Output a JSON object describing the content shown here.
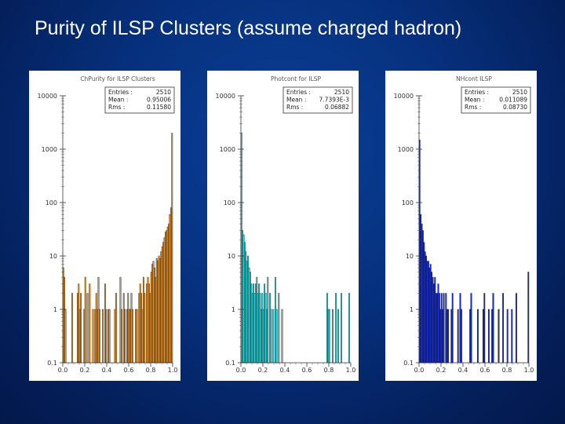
{
  "slide": {
    "title": "Purity of ILSP Clusters (assume charged hadron)"
  },
  "chart_data": [
    {
      "type": "bar",
      "title": "ChPurity for ILSP Clusters",
      "color": "#f7941d",
      "edge_color": "#222222",
      "y_scale": "log",
      "ylim": [
        0.1,
        10000
      ],
      "xlim": [
        0,
        1
      ],
      "y_ticks": [
        10000,
        1000,
        100,
        10,
        1,
        0.1
      ],
      "y_tick_labels": [
        "10000",
        "1000",
        "100",
        "10",
        "1",
        "0.1"
      ],
      "x_ticks": [
        0,
        0.2,
        0.4,
        0.6,
        0.8,
        1.0
      ],
      "x_tick_labels": [
        "0.0",
        "0.2",
        "0.4",
        "0.6",
        "0.8",
        "1.0"
      ],
      "stats": {
        "entries_label": "Entries :",
        "entries": "2510",
        "mean_label": "Mean :",
        "mean": "0.95006",
        "rms_label": "Rms :",
        "rms": "0.11580"
      },
      "bin_values": [
        6,
        4,
        1,
        0,
        0,
        0,
        0,
        0,
        2,
        0,
        0,
        0,
        0,
        2,
        3,
        1,
        2,
        0,
        0,
        1,
        4,
        0,
        2,
        0,
        3,
        0,
        0,
        1,
        0,
        1,
        2,
        1,
        4,
        1,
        0,
        0,
        1,
        0,
        3,
        1,
        0,
        1,
        1,
        0,
        0,
        0,
        0,
        1,
        2,
        0,
        0,
        0,
        4,
        1,
        0,
        2,
        1,
        0,
        1,
        2,
        1,
        1,
        2,
        1,
        0,
        0,
        1,
        1,
        0,
        2,
        3,
        2,
        1,
        4,
        2,
        0,
        3,
        4,
        3,
        2,
        5,
        7,
        8,
        6,
        4,
        9,
        8,
        10,
        9,
        12,
        15,
        18,
        22,
        28,
        30,
        35,
        40,
        60,
        80,
        2000
      ]
    },
    {
      "type": "bar",
      "title": "Photcont for ILSP",
      "color": "#1fe4ec",
      "edge_color": "#222222",
      "y_scale": "log",
      "ylim": [
        0.1,
        10000
      ],
      "xlim": [
        0,
        1
      ],
      "y_ticks": [
        10000,
        1000,
        100,
        10,
        1,
        0.1
      ],
      "y_tick_labels": [
        "10000",
        "1000",
        "100",
        "10",
        "1",
        "0.1"
      ],
      "x_ticks": [
        0,
        0.2,
        0.4,
        0.6,
        0.8,
        1.0
      ],
      "x_tick_labels": [
        "0.0",
        "0.2",
        "0.4",
        "0.6",
        "0.8",
        "1.0"
      ],
      "stats": {
        "entries_label": "Entries :",
        "entries": "2510",
        "mean_label": "Mean :",
        "mean": "7.7393E-3",
        "rms_label": "Rms :",
        "rms": "0.06882"
      },
      "bin_values": [
        2000,
        30,
        25,
        18,
        12,
        8,
        10,
        6,
        5,
        3,
        2,
        3,
        2,
        3,
        4,
        2,
        3,
        2,
        1,
        2,
        1,
        3,
        2,
        1,
        4,
        0,
        2,
        1,
        0,
        1,
        0,
        4,
        1,
        0,
        2,
        0,
        0,
        1,
        0,
        0,
        0,
        0,
        0,
        0,
        0,
        0,
        0,
        0,
        0,
        0,
        0,
        0,
        0,
        0,
        0,
        0,
        0,
        0,
        0,
        0,
        0,
        0,
        0,
        0,
        0,
        0,
        0,
        0,
        0,
        0,
        0,
        0,
        0,
        0,
        0,
        0,
        0,
        0,
        2,
        1,
        1,
        0,
        0,
        1,
        0,
        0,
        2,
        0,
        1,
        0,
        0,
        2,
        0,
        0,
        0,
        0,
        0,
        0,
        2,
        0
      ]
    },
    {
      "type": "bar",
      "title": "NHcont ILSP",
      "color": "#1530ee",
      "edge_color": "#111111",
      "y_scale": "log",
      "ylim": [
        0.1,
        10000
      ],
      "xlim": [
        0,
        1
      ],
      "y_ticks": [
        10000,
        1000,
        100,
        10,
        1,
        0.1
      ],
      "y_tick_labels": [
        "10000",
        "1000",
        "100",
        "10",
        "1",
        "0.1"
      ],
      "x_ticks": [
        0,
        0.2,
        0.4,
        0.6,
        0.8,
        1.0
      ],
      "x_tick_labels": [
        "0.0",
        "0.2",
        "0.4",
        "0.6",
        "0.8",
        "1.0"
      ],
      "stats": {
        "entries_label": "Entries :",
        "entries": "2510",
        "mean_label": "Mean :",
        "mean": "0.011089",
        "rms_label": "Rms :",
        "rms": "0.08730"
      },
      "bin_values": [
        1500,
        60,
        40,
        30,
        18,
        12,
        10,
        8,
        8,
        6,
        7,
        5,
        4,
        3,
        4,
        2,
        2,
        3,
        2,
        1,
        2,
        1,
        2,
        0,
        2,
        1,
        1,
        0,
        0,
        1,
        2,
        0,
        0,
        0,
        0,
        1,
        0,
        2,
        1,
        0,
        0,
        0,
        0,
        0,
        0,
        0,
        1,
        2,
        0,
        0,
        0,
        0,
        0,
        1,
        0,
        0,
        0,
        0,
        1,
        2,
        0,
        0,
        0,
        1,
        0,
        0,
        1,
        2,
        0,
        0,
        0,
        0,
        1,
        0,
        0,
        0,
        2,
        0,
        0,
        0,
        1,
        0,
        0,
        0,
        1,
        0,
        0,
        0,
        2,
        0,
        0,
        0,
        0,
        0,
        0,
        0,
        0,
        0,
        0,
        5
      ]
    }
  ]
}
